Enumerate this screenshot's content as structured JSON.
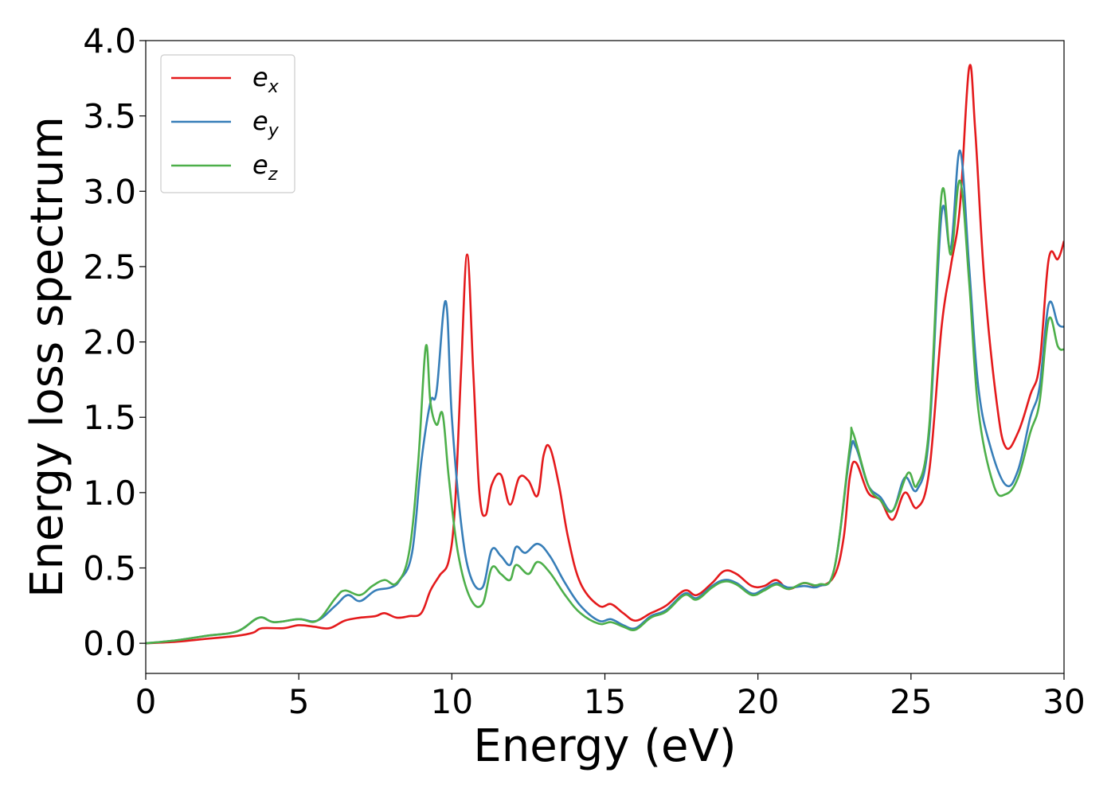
{
  "chart_data": {
    "type": "line",
    "xlabel": "Energy (eV)",
    "ylabel": "Energy loss spectrum",
    "xlim": [
      0,
      30
    ],
    "ylim": [
      -0.2,
      4.0
    ],
    "xticks": [
      "0",
      "5",
      "10",
      "15",
      "20",
      "25",
      "30"
    ],
    "yticks": [
      "0.0",
      "0.5",
      "1.0",
      "1.5",
      "2.0",
      "2.5",
      "3.0",
      "3.5",
      "4.0"
    ],
    "grid": false,
    "legend_position": "top-left",
    "series": [
      {
        "name": "e_x",
        "label_base": "e",
        "label_sub": "x",
        "color": "#e41a1c",
        "points": [
          [
            0,
            0
          ],
          [
            1,
            0.01
          ],
          [
            2,
            0.03
          ],
          [
            3,
            0.05
          ],
          [
            3.5,
            0.07
          ],
          [
            3.8,
            0.1
          ],
          [
            4.5,
            0.1
          ],
          [
            5,
            0.12
          ],
          [
            5.5,
            0.11
          ],
          [
            6,
            0.1
          ],
          [
            6.5,
            0.15
          ],
          [
            7,
            0.17
          ],
          [
            7.5,
            0.18
          ],
          [
            7.8,
            0.2
          ],
          [
            8.2,
            0.17
          ],
          [
            8.6,
            0.18
          ],
          [
            9,
            0.2
          ],
          [
            9.3,
            0.35
          ],
          [
            9.6,
            0.45
          ],
          [
            9.9,
            0.55
          ],
          [
            10.1,
            0.9
          ],
          [
            10.3,
            1.8
          ],
          [
            10.5,
            2.58
          ],
          [
            10.7,
            1.8
          ],
          [
            10.9,
            1.0
          ],
          [
            11.1,
            0.85
          ],
          [
            11.3,
            1.05
          ],
          [
            11.6,
            1.12
          ],
          [
            11.9,
            0.92
          ],
          [
            12.2,
            1.1
          ],
          [
            12.5,
            1.08
          ],
          [
            12.8,
            0.98
          ],
          [
            13.0,
            1.25
          ],
          [
            13.2,
            1.3
          ],
          [
            13.5,
            1.05
          ],
          [
            13.8,
            0.7
          ],
          [
            14.2,
            0.4
          ],
          [
            14.8,
            0.25
          ],
          [
            15.2,
            0.26
          ],
          [
            15.6,
            0.2
          ],
          [
            16.0,
            0.15
          ],
          [
            16.5,
            0.2
          ],
          [
            17.0,
            0.25
          ],
          [
            17.6,
            0.35
          ],
          [
            18.0,
            0.32
          ],
          [
            18.5,
            0.4
          ],
          [
            18.9,
            0.48
          ],
          [
            19.3,
            0.46
          ],
          [
            19.8,
            0.38
          ],
          [
            20.2,
            0.38
          ],
          [
            20.6,
            0.42
          ],
          [
            21.0,
            0.36
          ],
          [
            21.5,
            0.4
          ],
          [
            22.0,
            0.38
          ],
          [
            22.5,
            0.45
          ],
          [
            22.8,
            0.7
          ],
          [
            23.0,
            1.1
          ],
          [
            23.2,
            1.2
          ],
          [
            23.6,
            1.0
          ],
          [
            24.0,
            0.95
          ],
          [
            24.4,
            0.82
          ],
          [
            24.8,
            1.0
          ],
          [
            25.2,
            0.9
          ],
          [
            25.6,
            1.15
          ],
          [
            26.0,
            2.1
          ],
          [
            26.3,
            2.5
          ],
          [
            26.6,
            2.9
          ],
          [
            26.9,
            3.82
          ],
          [
            27.1,
            3.4
          ],
          [
            27.4,
            2.4
          ],
          [
            27.8,
            1.6
          ],
          [
            28.1,
            1.3
          ],
          [
            28.5,
            1.4
          ],
          [
            28.9,
            1.65
          ],
          [
            29.2,
            1.85
          ],
          [
            29.5,
            2.55
          ],
          [
            29.8,
            2.55
          ],
          [
            30,
            2.67
          ]
        ]
      },
      {
        "name": "e_y",
        "label_base": "e",
        "label_sub": "y",
        "color": "#377eb8",
        "points": [
          [
            0,
            0
          ],
          [
            1,
            0.02
          ],
          [
            2,
            0.05
          ],
          [
            3,
            0.08
          ],
          [
            3.7,
            0.17
          ],
          [
            4.2,
            0.14
          ],
          [
            5,
            0.16
          ],
          [
            5.6,
            0.15
          ],
          [
            6.2,
            0.25
          ],
          [
            6.6,
            0.32
          ],
          [
            7.0,
            0.28
          ],
          [
            7.5,
            0.35
          ],
          [
            8.0,
            0.37
          ],
          [
            8.3,
            0.42
          ],
          [
            8.7,
            0.6
          ],
          [
            9.0,
            1.2
          ],
          [
            9.3,
            1.6
          ],
          [
            9.5,
            1.67
          ],
          [
            9.8,
            2.27
          ],
          [
            10.0,
            1.5
          ],
          [
            10.3,
            0.8
          ],
          [
            10.6,
            0.45
          ],
          [
            11.0,
            0.37
          ],
          [
            11.3,
            0.62
          ],
          [
            11.6,
            0.58
          ],
          [
            11.9,
            0.52
          ],
          [
            12.1,
            0.64
          ],
          [
            12.4,
            0.6
          ],
          [
            12.8,
            0.66
          ],
          [
            13.2,
            0.58
          ],
          [
            13.7,
            0.4
          ],
          [
            14.2,
            0.25
          ],
          [
            14.8,
            0.15
          ],
          [
            15.2,
            0.16
          ],
          [
            15.6,
            0.12
          ],
          [
            16.0,
            0.1
          ],
          [
            16.5,
            0.18
          ],
          [
            17.0,
            0.22
          ],
          [
            17.6,
            0.33
          ],
          [
            18.0,
            0.3
          ],
          [
            18.5,
            0.38
          ],
          [
            18.9,
            0.42
          ],
          [
            19.3,
            0.4
          ],
          [
            19.8,
            0.33
          ],
          [
            20.2,
            0.36
          ],
          [
            20.6,
            0.4
          ],
          [
            21.0,
            0.37
          ],
          [
            21.5,
            0.38
          ],
          [
            22.0,
            0.38
          ],
          [
            22.5,
            0.5
          ],
          [
            23.0,
            1.25
          ],
          [
            23.2,
            1.3
          ],
          [
            23.6,
            1.05
          ],
          [
            24.0,
            0.97
          ],
          [
            24.4,
            0.88
          ],
          [
            24.8,
            1.1
          ],
          [
            25.2,
            1.02
          ],
          [
            25.6,
            1.4
          ],
          [
            26.0,
            2.85
          ],
          [
            26.3,
            2.62
          ],
          [
            26.6,
            3.27
          ],
          [
            26.9,
            2.5
          ],
          [
            27.2,
            1.7
          ],
          [
            27.6,
            1.3
          ],
          [
            28.1,
            1.05
          ],
          [
            28.5,
            1.15
          ],
          [
            28.9,
            1.5
          ],
          [
            29.2,
            1.7
          ],
          [
            29.5,
            2.25
          ],
          [
            29.8,
            2.12
          ],
          [
            30,
            2.1
          ]
        ]
      },
      {
        "name": "e_z",
        "label_base": "e",
        "label_sub": "z",
        "color": "#4daf4a",
        "points": [
          [
            0,
            0
          ],
          [
            1,
            0.02
          ],
          [
            2,
            0.05
          ],
          [
            3,
            0.08
          ],
          [
            3.7,
            0.17
          ],
          [
            4.2,
            0.14
          ],
          [
            5,
            0.16
          ],
          [
            5.6,
            0.15
          ],
          [
            6.2,
            0.3
          ],
          [
            6.5,
            0.35
          ],
          [
            7.0,
            0.32
          ],
          [
            7.4,
            0.38
          ],
          [
            7.8,
            0.42
          ],
          [
            8.2,
            0.4
          ],
          [
            8.6,
            0.6
          ],
          [
            8.9,
            1.2
          ],
          [
            9.15,
            1.97
          ],
          [
            9.3,
            1.6
          ],
          [
            9.5,
            1.45
          ],
          [
            9.7,
            1.52
          ],
          [
            9.9,
            1.1
          ],
          [
            10.2,
            0.6
          ],
          [
            10.6,
            0.3
          ],
          [
            11.0,
            0.26
          ],
          [
            11.3,
            0.5
          ],
          [
            11.6,
            0.46
          ],
          [
            11.9,
            0.42
          ],
          [
            12.1,
            0.52
          ],
          [
            12.5,
            0.46
          ],
          [
            12.8,
            0.54
          ],
          [
            13.2,
            0.47
          ],
          [
            13.7,
            0.32
          ],
          [
            14.2,
            0.2
          ],
          [
            14.8,
            0.13
          ],
          [
            15.2,
            0.14
          ],
          [
            15.6,
            0.11
          ],
          [
            16.0,
            0.09
          ],
          [
            16.5,
            0.17
          ],
          [
            17.0,
            0.21
          ],
          [
            17.6,
            0.32
          ],
          [
            18.0,
            0.29
          ],
          [
            18.5,
            0.37
          ],
          [
            18.9,
            0.41
          ],
          [
            19.3,
            0.39
          ],
          [
            19.8,
            0.32
          ],
          [
            20.2,
            0.35
          ],
          [
            20.6,
            0.39
          ],
          [
            21.0,
            0.36
          ],
          [
            21.5,
            0.4
          ],
          [
            22.0,
            0.39
          ],
          [
            22.5,
            0.5
          ],
          [
            23.0,
            1.3
          ],
          [
            23.1,
            1.4
          ],
          [
            23.6,
            1.05
          ],
          [
            24.0,
            0.95
          ],
          [
            24.4,
            0.88
          ],
          [
            24.9,
            1.13
          ],
          [
            25.2,
            1.05
          ],
          [
            25.6,
            1.45
          ],
          [
            26.0,
            2.98
          ],
          [
            26.3,
            2.58
          ],
          [
            26.6,
            3.07
          ],
          [
            26.9,
            2.4
          ],
          [
            27.2,
            1.55
          ],
          [
            27.7,
            1.05
          ],
          [
            28.1,
            0.99
          ],
          [
            28.5,
            1.1
          ],
          [
            28.9,
            1.4
          ],
          [
            29.2,
            1.6
          ],
          [
            29.5,
            2.15
          ],
          [
            29.8,
            1.97
          ],
          [
            30,
            1.95
          ]
        ]
      }
    ]
  }
}
